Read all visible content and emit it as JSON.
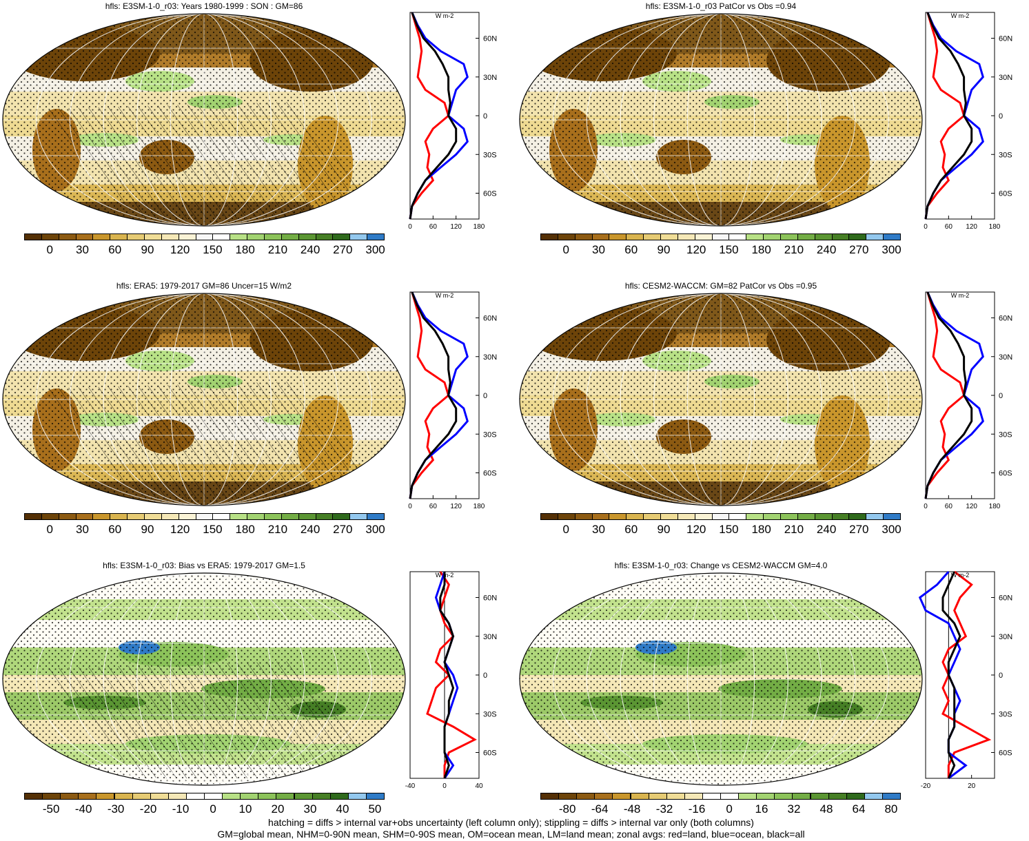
{
  "colors": {
    "abs": [
      "#543005",
      "#6d4409",
      "#8c5a12",
      "#a86f1c",
      "#c9962c",
      "#d9b44f",
      "#e6cb74",
      "#f0dd97",
      "#f5e8b7",
      "#faf3d6",
      "#f7f7f7",
      "#ffffff",
      "#b8e186",
      "#a2d371",
      "#8cc35a",
      "#73ad45",
      "#5b9633",
      "#467f25",
      "#2f6a1c",
      "#93c8ee",
      "#2f7bc7"
    ],
    "diff": [
      "#543005",
      "#6d4409",
      "#8c5a12",
      "#a86f1c",
      "#c9962c",
      "#d9b44f",
      "#e6cb74",
      "#f0dd97",
      "#f5e8b7",
      "#ffffff",
      "#ffffff",
      "#b8e186",
      "#a2d371",
      "#8cc35a",
      "#73ad45",
      "#5b9633",
      "#467f25",
      "#2f6a1c",
      "#93c8ee",
      "#2f7bc7"
    ],
    "land": "red",
    "ocean": "blue",
    "all": "black"
  },
  "panels": [
    {
      "title": "hfls: E3SM-1-0_r03: Years 1980-1999 : SON : GM=86",
      "cbar": [
        "0",
        "30",
        "60",
        "90",
        "120",
        "150",
        "180",
        "210",
        "240",
        "270",
        "300"
      ],
      "palette": "abs",
      "zonal_ticks": [
        "0",
        "60",
        "120",
        "180"
      ],
      "hatched": true
    },
    {
      "title": "hfls: E3SM-1-0_r03 PatCor vs Obs =0.94",
      "cbar": [
        "0",
        "30",
        "60",
        "90",
        "120",
        "150",
        "180",
        "210",
        "240",
        "270",
        "300"
      ],
      "palette": "abs",
      "zonal_ticks": [
        "0",
        "60",
        "120",
        "180"
      ],
      "hatched": false
    },
    {
      "title": "hfls: ERA5: 1979-2017 GM=86 Uncer=15 W/m2",
      "cbar": [
        "0",
        "30",
        "60",
        "90",
        "120",
        "150",
        "180",
        "210",
        "240",
        "270",
        "300"
      ],
      "palette": "abs",
      "zonal_ticks": [
        "0",
        "60",
        "120",
        "180"
      ],
      "hatched": true
    },
    {
      "title": "hfls: CESM2-WACCM: GM=82 PatCor vs Obs =0.95",
      "cbar": [
        "0",
        "30",
        "60",
        "90",
        "120",
        "150",
        "180",
        "210",
        "240",
        "270",
        "300"
      ],
      "palette": "abs",
      "zonal_ticks": [
        "0",
        "60",
        "120",
        "180"
      ],
      "hatched": false
    },
    {
      "title": "hfls: E3SM-1-0_r03: Bias vs ERA5: 1979-2017  GM=1.5",
      "cbar": [
        "-50",
        "-40",
        "-30",
        "-20",
        "-10",
        "0",
        "10",
        "20",
        "30",
        "40",
        "50"
      ],
      "palette": "diff",
      "zonal_ticks": [
        "-40",
        "0",
        "40"
      ],
      "hatched": true
    },
    {
      "title": "hfls: E3SM-1-0_r03: Change vs CESM2-WACCM GM=4.0",
      "cbar": [
        "-80",
        "-64",
        "-48",
        "-32",
        "-16",
        "0",
        "16",
        "32",
        "48",
        "64",
        "80"
      ],
      "palette": "diff",
      "zonal_ticks": [
        "-20",
        "20"
      ],
      "hatched": false
    }
  ],
  "zonal": {
    "unit": "W m-2",
    "lat_labels": [
      "60N",
      "30N",
      "0",
      "30S",
      "60S"
    ],
    "abs": {
      "lat": [
        80,
        70,
        60,
        50,
        40,
        30,
        20,
        10,
        0,
        -10,
        -20,
        -30,
        -40,
        -50,
        -60,
        -70,
        -80
      ],
      "land": [
        5,
        15,
        25,
        30,
        25,
        20,
        40,
        90,
        100,
        60,
        40,
        50,
        45,
        60,
        30,
        5,
        0
      ],
      "ocean": [
        5,
        20,
        40,
        80,
        140,
        150,
        120,
        110,
        100,
        140,
        150,
        120,
        80,
        40,
        20,
        5,
        0
      ],
      "all": [
        5,
        18,
        35,
        65,
        85,
        100,
        100,
        105,
        100,
        120,
        120,
        100,
        70,
        40,
        20,
        5,
        0
      ]
    },
    "bias": {
      "lat": [
        80,
        70,
        60,
        50,
        40,
        30,
        20,
        10,
        0,
        -10,
        -20,
        -30,
        -40,
        -50,
        -60,
        -70,
        -80
      ],
      "land": [
        -5,
        5,
        0,
        -5,
        0,
        10,
        -5,
        -10,
        5,
        -10,
        -15,
        -20,
        10,
        35,
        5,
        0,
        0
      ],
      "ocean": [
        0,
        -5,
        -10,
        -5,
        5,
        10,
        5,
        0,
        10,
        15,
        10,
        5,
        0,
        0,
        0,
        10,
        0
      ],
      "all": [
        0,
        0,
        -5,
        -5,
        5,
        10,
        5,
        0,
        5,
        10,
        5,
        5,
        0,
        0,
        0,
        5,
        0
      ]
    },
    "change": {
      "lat": [
        80,
        70,
        60,
        50,
        40,
        30,
        20,
        10,
        0,
        -10,
        -20,
        -30,
        -40,
        -50,
        -60,
        -70,
        -80
      ],
      "land": [
        5,
        20,
        10,
        5,
        10,
        15,
        0,
        -5,
        0,
        -5,
        0,
        -5,
        15,
        35,
        5,
        0,
        0
      ],
      "ocean": [
        0,
        -10,
        -25,
        -20,
        0,
        5,
        10,
        5,
        0,
        5,
        10,
        5,
        5,
        0,
        0,
        15,
        0
      ],
      "all": [
        5,
        0,
        -5,
        -5,
        5,
        10,
        5,
        0,
        0,
        5,
        5,
        5,
        5,
        0,
        0,
        5,
        0
      ]
    }
  },
  "footer": [
    "hatching = diffs > internal var+obs uncertainty (left column only); stippling = diffs > internal var only (both columns)",
    "GM=global mean, NHM=0-90N mean, SHM=0-90S mean, OM=ocean mean, LM=land mean; zonal avgs: red=land, blue=ocean, black=all"
  ],
  "chart_data": {
    "type": "line",
    "title": "",
    "series_note": "zonal averages",
    "panels": [
      {
        "name": "E3SM-1-0_r03 SON",
        "xlim": [
          0,
          180
        ],
        "lat": [
          80,
          70,
          60,
          50,
          40,
          30,
          20,
          10,
          0,
          -10,
          -20,
          -30,
          -40,
          -50,
          -60,
          -70,
          -80
        ],
        "land": [
          5,
          15,
          25,
          30,
          25,
          20,
          40,
          90,
          100,
          60,
          40,
          50,
          45,
          60,
          30,
          5,
          0
        ],
        "ocean": [
          5,
          20,
          40,
          80,
          140,
          150,
          120,
          110,
          100,
          140,
          150,
          120,
          80,
          40,
          20,
          5,
          0
        ],
        "all": [
          5,
          18,
          35,
          65,
          85,
          100,
          100,
          105,
          100,
          120,
          120,
          100,
          70,
          40,
          20,
          5,
          0
        ]
      },
      {
        "name": "Bias vs ERA5",
        "xlim": [
          -40,
          40
        ],
        "lat": [
          80,
          70,
          60,
          50,
          40,
          30,
          20,
          10,
          0,
          -10,
          -20,
          -30,
          -40,
          -50,
          -60,
          -70,
          -80
        ],
        "land": [
          -5,
          5,
          0,
          -5,
          0,
          10,
          -5,
          -10,
          5,
          -10,
          -15,
          -20,
          10,
          35,
          5,
          0,
          0
        ],
        "ocean": [
          0,
          -5,
          -10,
          -5,
          5,
          10,
          5,
          0,
          10,
          15,
          10,
          5,
          0,
          0,
          0,
          10,
          0
        ],
        "all": [
          0,
          0,
          -5,
          -5,
          5,
          10,
          5,
          0,
          5,
          10,
          5,
          5,
          0,
          0,
          0,
          5,
          0
        ]
      }
    ]
  }
}
